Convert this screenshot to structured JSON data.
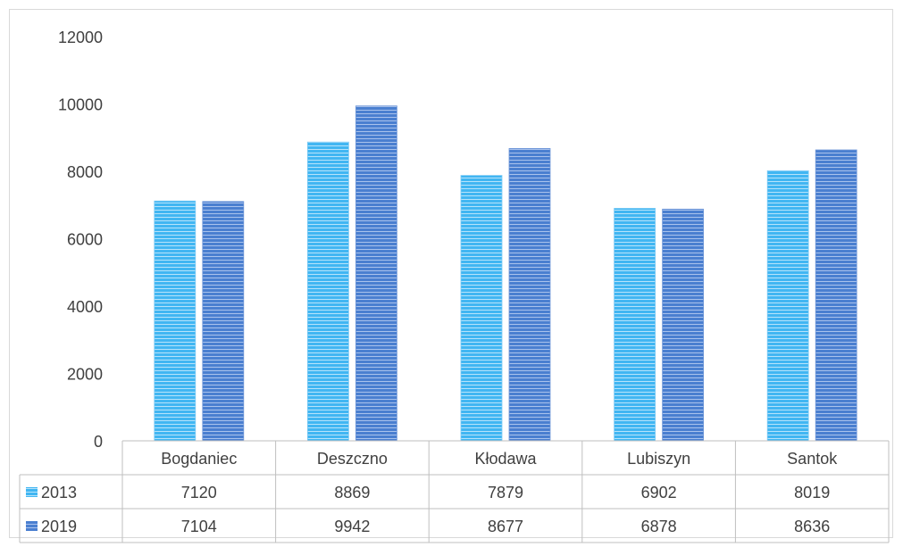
{
  "chart_data": {
    "type": "bar",
    "categories": [
      "Bogdaniec",
      "Deszczno",
      "Kłodawa",
      "Lubiszyn",
      "Santok"
    ],
    "series": [
      {
        "name": "2013",
        "values": [
          7120,
          8869,
          7879,
          6902,
          8019
        ],
        "color": "#41b6f2"
      },
      {
        "name": "2019",
        "values": [
          7104,
          9942,
          8677,
          6878,
          8636
        ],
        "color": "#4a7fd0"
      }
    ],
    "ylim": [
      0,
      12000
    ],
    "yticks": [
      "0",
      "2000",
      "4000",
      "6000",
      "8000",
      "10000",
      "12000"
    ],
    "grid": false,
    "legend": "data-table-left",
    "data_table": true
  }
}
